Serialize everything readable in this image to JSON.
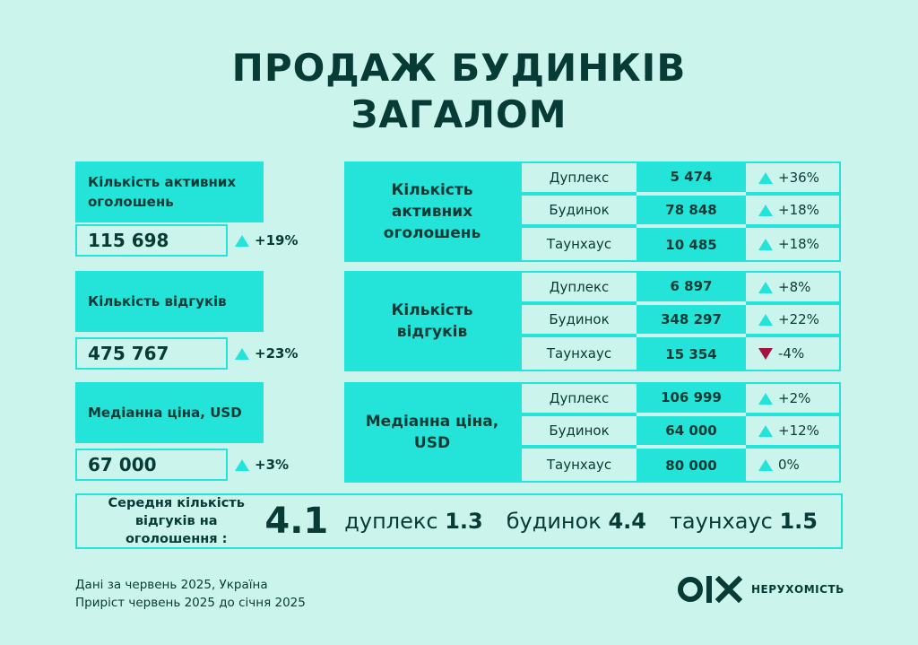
{
  "title": {
    "line1": "ПРОДАЖ БУДИНКІВ",
    "line2": "ЗАГАЛОМ"
  },
  "colors": {
    "accent": "#24e3d9",
    "background": "#cbf5ec",
    "text": "#073b35",
    "down": "#a4123f"
  },
  "cards": [
    {
      "label": "Кількість активних оголошень",
      "value": "115 698",
      "change": "+19%",
      "trend": "up"
    },
    {
      "label": "Кількість відгуків",
      "value": "475 767",
      "change": "+23%",
      "trend": "up"
    },
    {
      "label": "Медіанна ціна, USD",
      "value": "67 000",
      "change": "+3%",
      "trend": "up"
    }
  ],
  "tables": [
    {
      "label": "Кількість активних оголошень",
      "rows": [
        {
          "type": "Дуплекс",
          "value": "5 474",
          "change": "+36%",
          "trend": "up"
        },
        {
          "type": "Будинок",
          "value": "78 848",
          "change": "+18%",
          "trend": "up"
        },
        {
          "type": "Таунхаус",
          "value": "10 485",
          "change": "+18%",
          "trend": "up"
        }
      ]
    },
    {
      "label": "Кількість відгуків",
      "rows": [
        {
          "type": "Дуплекс",
          "value": "6 897",
          "change": "+8%",
          "trend": "up"
        },
        {
          "type": "Будинок",
          "value": "348 297",
          "change": "+22%",
          "trend": "up"
        },
        {
          "type": "Таунхаус",
          "value": "15 354",
          "change": "-4%",
          "trend": "down"
        }
      ]
    },
    {
      "label": "Медіанна ціна, USD",
      "rows": [
        {
          "type": "Дуплекс",
          "value": "106 999",
          "change": "+2%",
          "trend": "up"
        },
        {
          "type": "Будинок",
          "value": "64 000",
          "change": "+12%",
          "trend": "up"
        },
        {
          "type": "Таунхаус",
          "value": "80 000",
          "change": "0%",
          "trend": "up"
        }
      ]
    }
  ],
  "summary": {
    "label": "Середня кількість відгуків на оголошення :",
    "total": "4.1",
    "items": [
      {
        "name": "дуплекс",
        "value": "1.3"
      },
      {
        "name": "будинок",
        "value": "4.4"
      },
      {
        "name": "таунхаус",
        "value": "1.5"
      }
    ]
  },
  "footnote": {
    "line1": "Дані за червень 2025, Україна",
    "line2": "Приріст червень 2025 до січня 2025"
  },
  "logo": {
    "mark": "OLX",
    "text": "НЕРУХОМІСТЬ"
  }
}
